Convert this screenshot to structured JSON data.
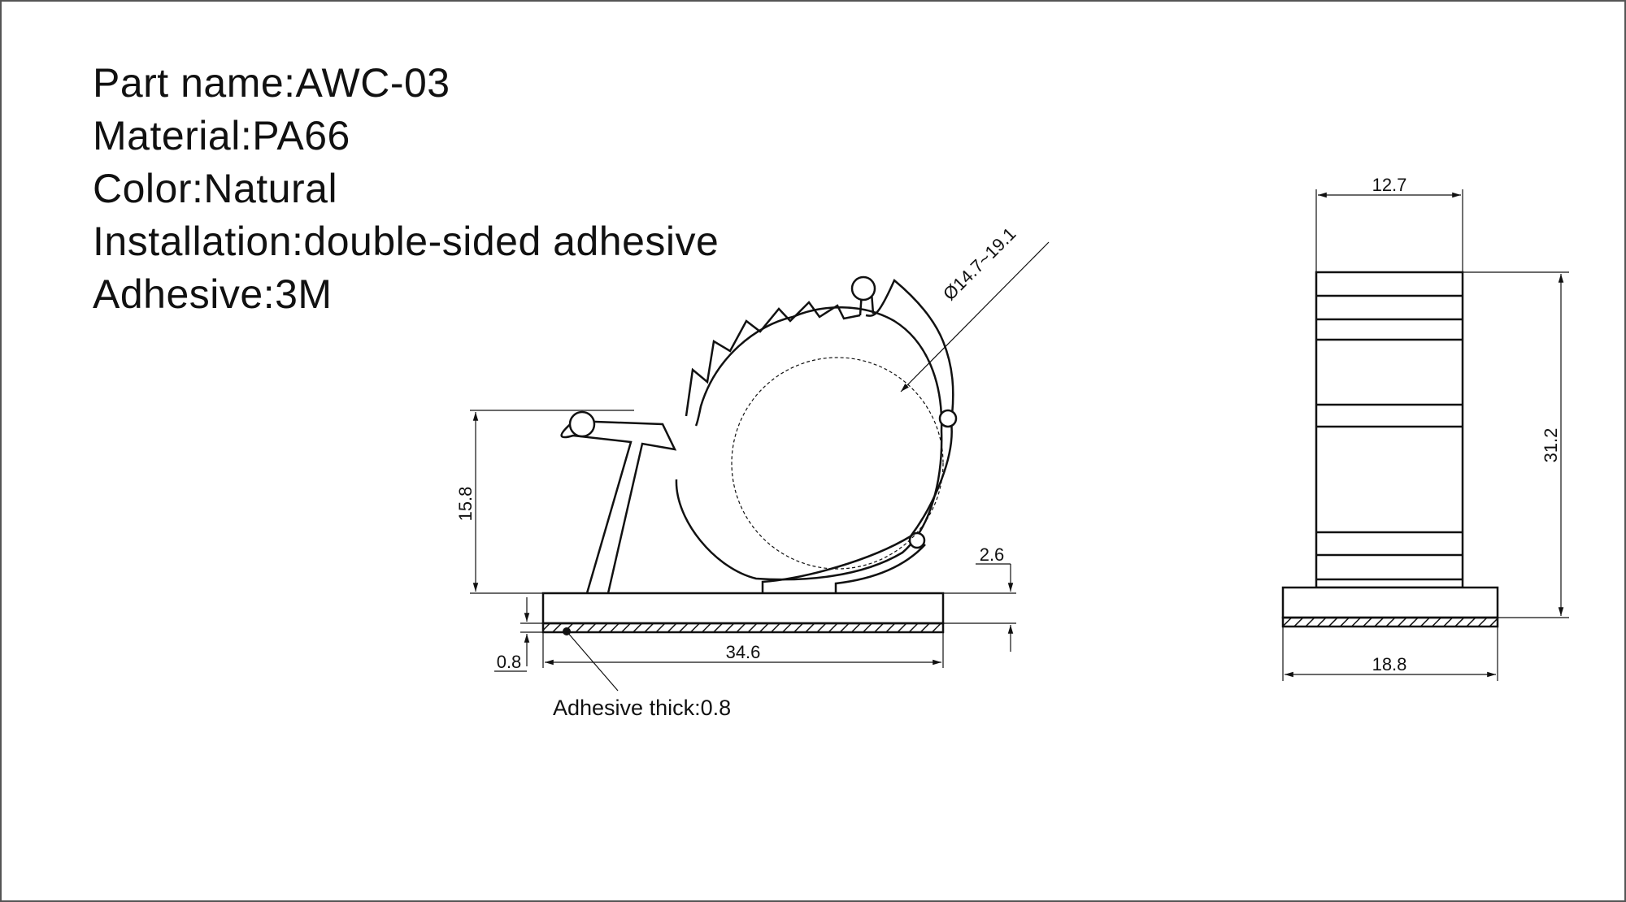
{
  "spec": {
    "part_name": "Part name:AWC-03",
    "material": "Material:PA66",
    "color": "Color:Natural",
    "installation": "Installation:double-sided adhesive",
    "adhesive": "Adhesive:3M"
  },
  "front_view": {
    "dim_height": "15.8",
    "dim_base_thick": "2.6",
    "dim_adhesive": "0.8",
    "dim_width": "34.6",
    "dim_diameter": "Ø14.7~19.1",
    "adhesive_note": "Adhesive thick:0.8"
  },
  "side_view": {
    "dim_top_width": "12.7",
    "dim_height": "31.2",
    "dim_base_width": "18.8"
  }
}
